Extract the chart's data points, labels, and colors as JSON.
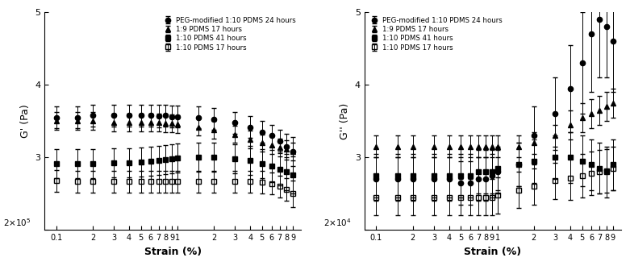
{
  "legend_labels": [
    "PEG-modified 1:10 PDMS 24 hours",
    "1:9 PDMS 17 hours",
    "1:10 PDMS 41 hours",
    "1:10 PDMS 17 hours"
  ],
  "left_xlabel": "Strain (%)",
  "left_ylabel": "G' (Pa)",
  "right_xlabel": "Strain (%)",
  "right_ylabel": "G'' (Pa)",
  "xtick_positions": [
    0.1,
    0.2,
    0.3,
    0.4,
    0.5,
    0.6,
    0.7,
    0.8,
    0.9,
    1.0,
    2.0,
    3.0,
    4.0,
    5.0,
    6.0,
    7.0,
    8.0,
    9.0
  ],
  "xtick_labels": [
    "0.1",
    "2",
    "3",
    "4",
    "5",
    "6",
    "7",
    "8",
    "9",
    "1",
    "2",
    "3",
    "4",
    "5",
    "6",
    "7",
    "8",
    "9"
  ],
  "left_ylim": [
    200000,
    500000
  ],
  "right_ylim": [
    20000,
    50000
  ],
  "left_yticks": [
    200000,
    300000,
    400000,
    500000
  ],
  "right_yticks": [
    20000,
    30000,
    40000,
    50000
  ],
  "left_ytick_labels": [
    "",
    "3",
    "4",
    "5"
  ],
  "right_ytick_labels": [
    "",
    "3",
    "4",
    "5"
  ],
  "left_ybase_label": "2×10$^5$",
  "right_ybase_label": "2×10$^4$",
  "left_series": {
    "PEG": {
      "x": [
        0.1,
        0.15,
        0.2,
        0.3,
        0.4,
        0.5,
        0.6,
        0.7,
        0.8,
        0.9,
        1.0,
        1.5,
        2.0,
        3.0,
        4.0,
        5.0,
        6.0,
        7.0,
        8.0,
        9.0
      ],
      "y": [
        355000,
        355000,
        358000,
        358000,
        358000,
        358000,
        358000,
        357000,
        358000,
        356000,
        356000,
        355000,
        353000,
        348000,
        342000,
        335000,
        330000,
        323000,
        315000,
        308000
      ],
      "yerr": [
        15000,
        15000,
        15000,
        15000,
        15000,
        15000,
        15000,
        15000,
        15000,
        15000,
        15000,
        15000,
        15000,
        15000,
        15000,
        15000,
        15000,
        15000,
        18000,
        20000
      ]
    },
    "tri19": {
      "x": [
        0.1,
        0.15,
        0.2,
        0.3,
        0.4,
        0.5,
        0.6,
        0.7,
        0.8,
        0.9,
        1.0,
        1.5,
        2.0,
        3.0,
        4.0,
        5.0,
        6.0,
        7.0,
        8.0,
        9.0
      ],
      "y": [
        350000,
        350000,
        350000,
        348000,
        348000,
        348000,
        348000,
        348000,
        347000,
        347000,
        346000,
        342000,
        338000,
        332000,
        325000,
        320000,
        317000,
        314000,
        312000,
        308000
      ],
      "yerr": [
        12000,
        12000,
        12000,
        12000,
        12000,
        12000,
        12000,
        12000,
        12000,
        12000,
        12000,
        12000,
        12000,
        12000,
        12000,
        12000,
        12000,
        12000,
        12000,
        12000
      ]
    },
    "sq110_41": {
      "x": [
        0.1,
        0.15,
        0.2,
        0.3,
        0.4,
        0.5,
        0.6,
        0.7,
        0.8,
        0.9,
        1.0,
        1.5,
        2.0,
        3.0,
        4.0,
        5.0,
        6.0,
        7.0,
        8.0,
        9.0
      ],
      "y": [
        292000,
        292000,
        292000,
        293000,
        293000,
        294000,
        295000,
        296000,
        297000,
        298000,
        299000,
        300000,
        300000,
        298000,
        296000,
        292000,
        288000,
        284000,
        280000,
        276000
      ],
      "yerr": [
        20000,
        20000,
        20000,
        20000,
        20000,
        20000,
        20000,
        20000,
        20000,
        20000,
        20000,
        20000,
        20000,
        20000,
        20000,
        20000,
        22000,
        22000,
        25000,
        25000
      ]
    },
    "sq110_17": {
      "x": [
        0.1,
        0.15,
        0.2,
        0.3,
        0.4,
        0.5,
        0.6,
        0.7,
        0.8,
        0.9,
        1.0,
        1.5,
        2.0,
        3.0,
        4.0,
        5.0,
        6.0,
        7.0,
        8.0,
        9.0
      ],
      "y": [
        268000,
        267000,
        267000,
        267000,
        267000,
        267000,
        267000,
        267000,
        267000,
        267000,
        267000,
        267000,
        267000,
        267000,
        267000,
        266000,
        264000,
        260000,
        256000,
        250000
      ],
      "yerr": [
        15000,
        15000,
        15000,
        15000,
        15000,
        15000,
        15000,
        15000,
        15000,
        15000,
        15000,
        15000,
        15000,
        15000,
        15000,
        15000,
        15000,
        15000,
        15000,
        18000
      ]
    }
  },
  "right_series": {
    "PEG": {
      "x": [
        0.1,
        0.15,
        0.2,
        0.3,
        0.4,
        0.5,
        0.6,
        0.7,
        0.8,
        0.9,
        1.0,
        1.5,
        2.0,
        3.0,
        4.0,
        5.0,
        6.0,
        7.0,
        8.0,
        9.0
      ],
      "y": [
        27000,
        27000,
        27000,
        27000,
        27000,
        26500,
        26500,
        27000,
        27000,
        27500,
        28000,
        29000,
        33000,
        36000,
        39500,
        43000,
        47000,
        49000,
        48000,
        46000
      ],
      "yerr": [
        3000,
        3000,
        3000,
        3000,
        3000,
        3000,
        3000,
        3000,
        3000,
        3000,
        3000,
        3000,
        4000,
        5000,
        6000,
        7000,
        8000,
        8000,
        7000,
        7000
      ]
    },
    "tri19": {
      "x": [
        0.1,
        0.15,
        0.2,
        0.3,
        0.4,
        0.5,
        0.6,
        0.7,
        0.8,
        0.9,
        1.0,
        1.5,
        2.0,
        3.0,
        4.0,
        5.0,
        6.0,
        7.0,
        8.0,
        9.0
      ],
      "y": [
        31500,
        31500,
        31500,
        31500,
        31500,
        31500,
        31500,
        31500,
        31500,
        31500,
        31500,
        31500,
        32000,
        33000,
        34500,
        35500,
        36000,
        36500,
        37000,
        37500
      ],
      "yerr": [
        1500,
        1500,
        1500,
        1500,
        1500,
        1500,
        1500,
        1500,
        1500,
        1500,
        1500,
        1500,
        1500,
        1500,
        2000,
        2000,
        2000,
        2000,
        2000,
        2000
      ]
    },
    "sq110_41": {
      "x": [
        0.1,
        0.15,
        0.2,
        0.3,
        0.4,
        0.5,
        0.6,
        0.7,
        0.8,
        0.9,
        1.0,
        1.5,
        2.0,
        3.0,
        4.0,
        5.0,
        6.0,
        7.0,
        8.0,
        9.0
      ],
      "y": [
        27500,
        27500,
        27500,
        27500,
        27500,
        27500,
        27500,
        28000,
        28000,
        28000,
        28500,
        29000,
        29500,
        30000,
        30000,
        29500,
        29000,
        28500,
        28000,
        29000
      ],
      "yerr": [
        3000,
        3000,
        3000,
        3000,
        3000,
        3000,
        3000,
        3000,
        3000,
        3000,
        3000,
        3000,
        3000,
        3000,
        3500,
        3500,
        3500,
        3500,
        3500,
        3500
      ]
    },
    "sq110_17": {
      "x": [
        0.1,
        0.15,
        0.2,
        0.3,
        0.4,
        0.5,
        0.6,
        0.7,
        0.8,
        0.9,
        1.0,
        1.5,
        2.0,
        3.0,
        4.0,
        5.0,
        6.0,
        7.0,
        8.0,
        9.0
      ],
      "y": [
        24500,
        24500,
        24500,
        24500,
        24500,
        24500,
        24500,
        24500,
        24500,
        24500,
        24800,
        25500,
        26000,
        26800,
        27200,
        27500,
        27800,
        28000,
        28200,
        28500
      ],
      "yerr": [
        2500,
        2500,
        2500,
        2500,
        2500,
        2500,
        2500,
        2500,
        2500,
        2500,
        2500,
        2500,
        2500,
        2500,
        3000,
        3000,
        3000,
        3000,
        3000,
        3000
      ]
    }
  }
}
